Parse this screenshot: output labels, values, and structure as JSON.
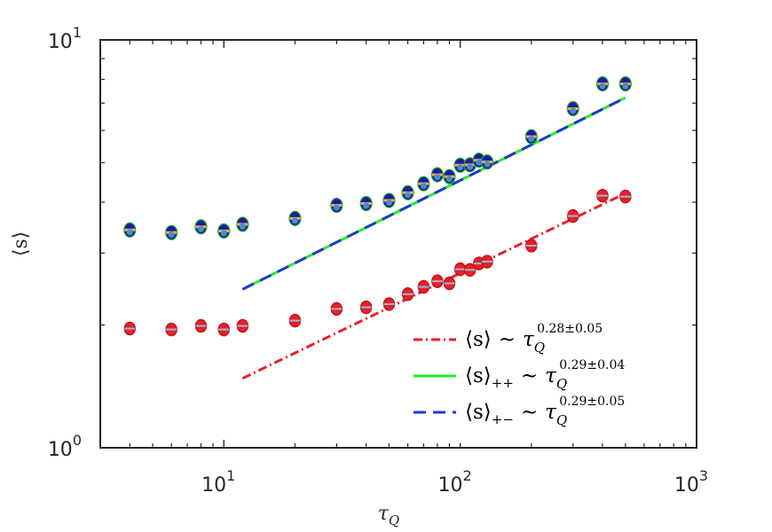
{
  "chart_data": {
    "type": "scatter",
    "xscale": "log",
    "yscale": "log",
    "xlim": [
      3,
      1000
    ],
    "ylim": [
      1,
      10
    ],
    "xlabel": "τ",
    "xlabel_sub": "Q",
    "ylabel": "⟨s⟩",
    "x_ticks": [
      {
        "value": 10,
        "base": "10",
        "exp": "1"
      },
      {
        "value": 100,
        "base": "10",
        "exp": "2"
      },
      {
        "value": 1000,
        "base": "10",
        "exp": "3"
      }
    ],
    "y_ticks": [
      {
        "value": 1,
        "base": "10",
        "exp": "0"
      },
      {
        "value": 10,
        "base": "10",
        "exp": "1"
      }
    ],
    "grid": false,
    "legend_position": "bottom-right",
    "series": [
      {
        "name": "⟨s⟩",
        "marker_color": "#e8202a",
        "marker_edge": "#c0151d",
        "x": [
          4,
          6,
          8,
          10,
          12,
          20,
          30,
          40,
          50,
          60,
          70,
          80,
          90,
          100,
          110,
          120,
          130,
          200,
          300,
          400,
          500
        ],
        "y": [
          1.96,
          1.95,
          1.99,
          1.95,
          1.99,
          2.05,
          2.19,
          2.21,
          2.25,
          2.38,
          2.48,
          2.56,
          2.53,
          2.74,
          2.73,
          2.83,
          2.86,
          3.13,
          3.7,
          4.15,
          4.13
        ]
      },
      {
        "name": "⟨s⟩++",
        "marker_color": "#e8b04a",
        "marker_edge": "#1a1aa8",
        "x": [
          4,
          6,
          8,
          10,
          12,
          20,
          30,
          40,
          50,
          60,
          70,
          80,
          90,
          100,
          110,
          120,
          130,
          200,
          300,
          400,
          500
        ],
        "y": [
          3.42,
          3.37,
          3.48,
          3.4,
          3.53,
          3.65,
          3.93,
          3.97,
          4.04,
          4.22,
          4.44,
          4.67,
          4.62,
          4.93,
          4.94,
          5.07,
          5.02,
          5.79,
          6.78,
          7.8,
          7.8
        ]
      },
      {
        "name": "⟨s⟩+−",
        "marker_color": "#4a8cc8",
        "marker_edge": "#1a1aa8",
        "x": [
          4,
          6,
          8,
          10,
          12,
          20,
          30,
          40,
          50,
          60,
          70,
          80,
          90,
          100,
          110,
          120,
          130,
          200,
          300,
          400,
          500
        ],
        "y": [
          3.42,
          3.37,
          3.48,
          3.4,
          3.53,
          3.65,
          3.93,
          3.97,
          4.04,
          4.22,
          4.44,
          4.67,
          4.62,
          4.93,
          4.94,
          5.07,
          5.02,
          5.79,
          6.78,
          7.8,
          7.8
        ]
      }
    ],
    "fits": [
      {
        "name": "fit-s",
        "color": "#e8202a",
        "style": "dashdot",
        "prefactor": 0.738,
        "exponent": 0.28,
        "x_range": [
          12,
          500
        ]
      },
      {
        "name": "fit-s-pp",
        "color": "#22ee22",
        "style": "solid",
        "prefactor": 1.19,
        "exponent": 0.29,
        "x_range": [
          12,
          500
        ]
      },
      {
        "name": "fit-s-pm",
        "color": "#1a3acc",
        "style": "dashed",
        "prefactor": 1.19,
        "exponent": 0.29,
        "x_range": [
          12,
          500
        ]
      }
    ],
    "legend": [
      {
        "lhs": "⟨s⟩",
        "sub": "",
        "rel": "∼",
        "tau": "τ",
        "tau_sub": "Q",
        "exp": "0.28±0.05",
        "color": "#e8202a",
        "style": "dashdot"
      },
      {
        "lhs": "⟨s⟩",
        "sub": "++",
        "rel": "∼",
        "tau": "τ",
        "tau_sub": "Q",
        "exp": "0.29±0.04",
        "color": "#22ee22",
        "style": "solid"
      },
      {
        "lhs": "⟨s⟩",
        "sub": "+−",
        "rel": "∼",
        "tau": "τ",
        "tau_sub": "Q",
        "exp": "0.29±0.05",
        "color": "#1a3acc",
        "style": "dashed"
      }
    ]
  }
}
